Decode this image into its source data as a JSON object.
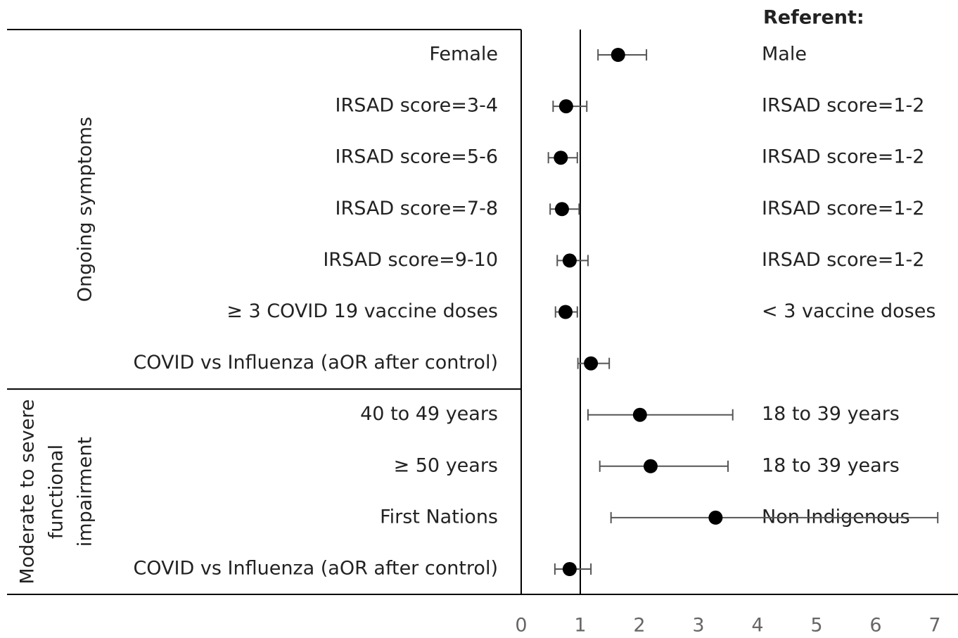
{
  "chart_data": {
    "type": "forest",
    "referent_header": "Referent:",
    "categories": [
      "Female",
      "IRSAD score=3-4",
      "IRSAD score=5-6",
      "IRSAD score=7-8",
      "IRSAD score=9-10",
      "≥ 3 COVID 19 vaccine doses",
      "COVID vs Influenza (aOR after control)",
      "40 to 49 years",
      "≥ 50 years",
      "First Nations",
      "COVID vs Influenza (aOR after control)"
    ],
    "referents": [
      "Male",
      "IRSAD score=1-2",
      "IRSAD score=1-2",
      "IRSAD score=1-2",
      "IRSAD score=1-2",
      "< 3 vaccine doses",
      null,
      "18 to 39 years",
      "18 to 39 years",
      "Non Indigenous",
      null
    ],
    "groups": [
      {
        "label_lines": [
          "Ongoing symptoms"
        ],
        "rows": 7
      },
      {
        "label_lines": [
          "Moderate to severe",
          "functional",
          "impairment"
        ],
        "rows": 4
      }
    ],
    "series": [
      {
        "name": "aOR",
        "color": "#000000",
        "values": [
          1.64,
          0.76,
          0.67,
          0.69,
          0.82,
          0.75,
          1.18,
          2.01,
          2.19,
          3.29,
          0.82
        ],
        "lower": [
          1.3,
          0.54,
          0.46,
          0.49,
          0.61,
          0.58,
          0.96,
          1.13,
          1.33,
          1.52,
          0.57
        ],
        "upper": [
          2.12,
          1.11,
          0.95,
          0.98,
          1.13,
          0.95,
          1.49,
          3.58,
          3.5,
          7.05,
          1.18
        ]
      }
    ],
    "reference_value": 1,
    "xlim": [
      0,
      7
    ],
    "xticks": [
      0,
      1,
      2,
      3,
      4,
      5,
      6,
      7
    ]
  }
}
